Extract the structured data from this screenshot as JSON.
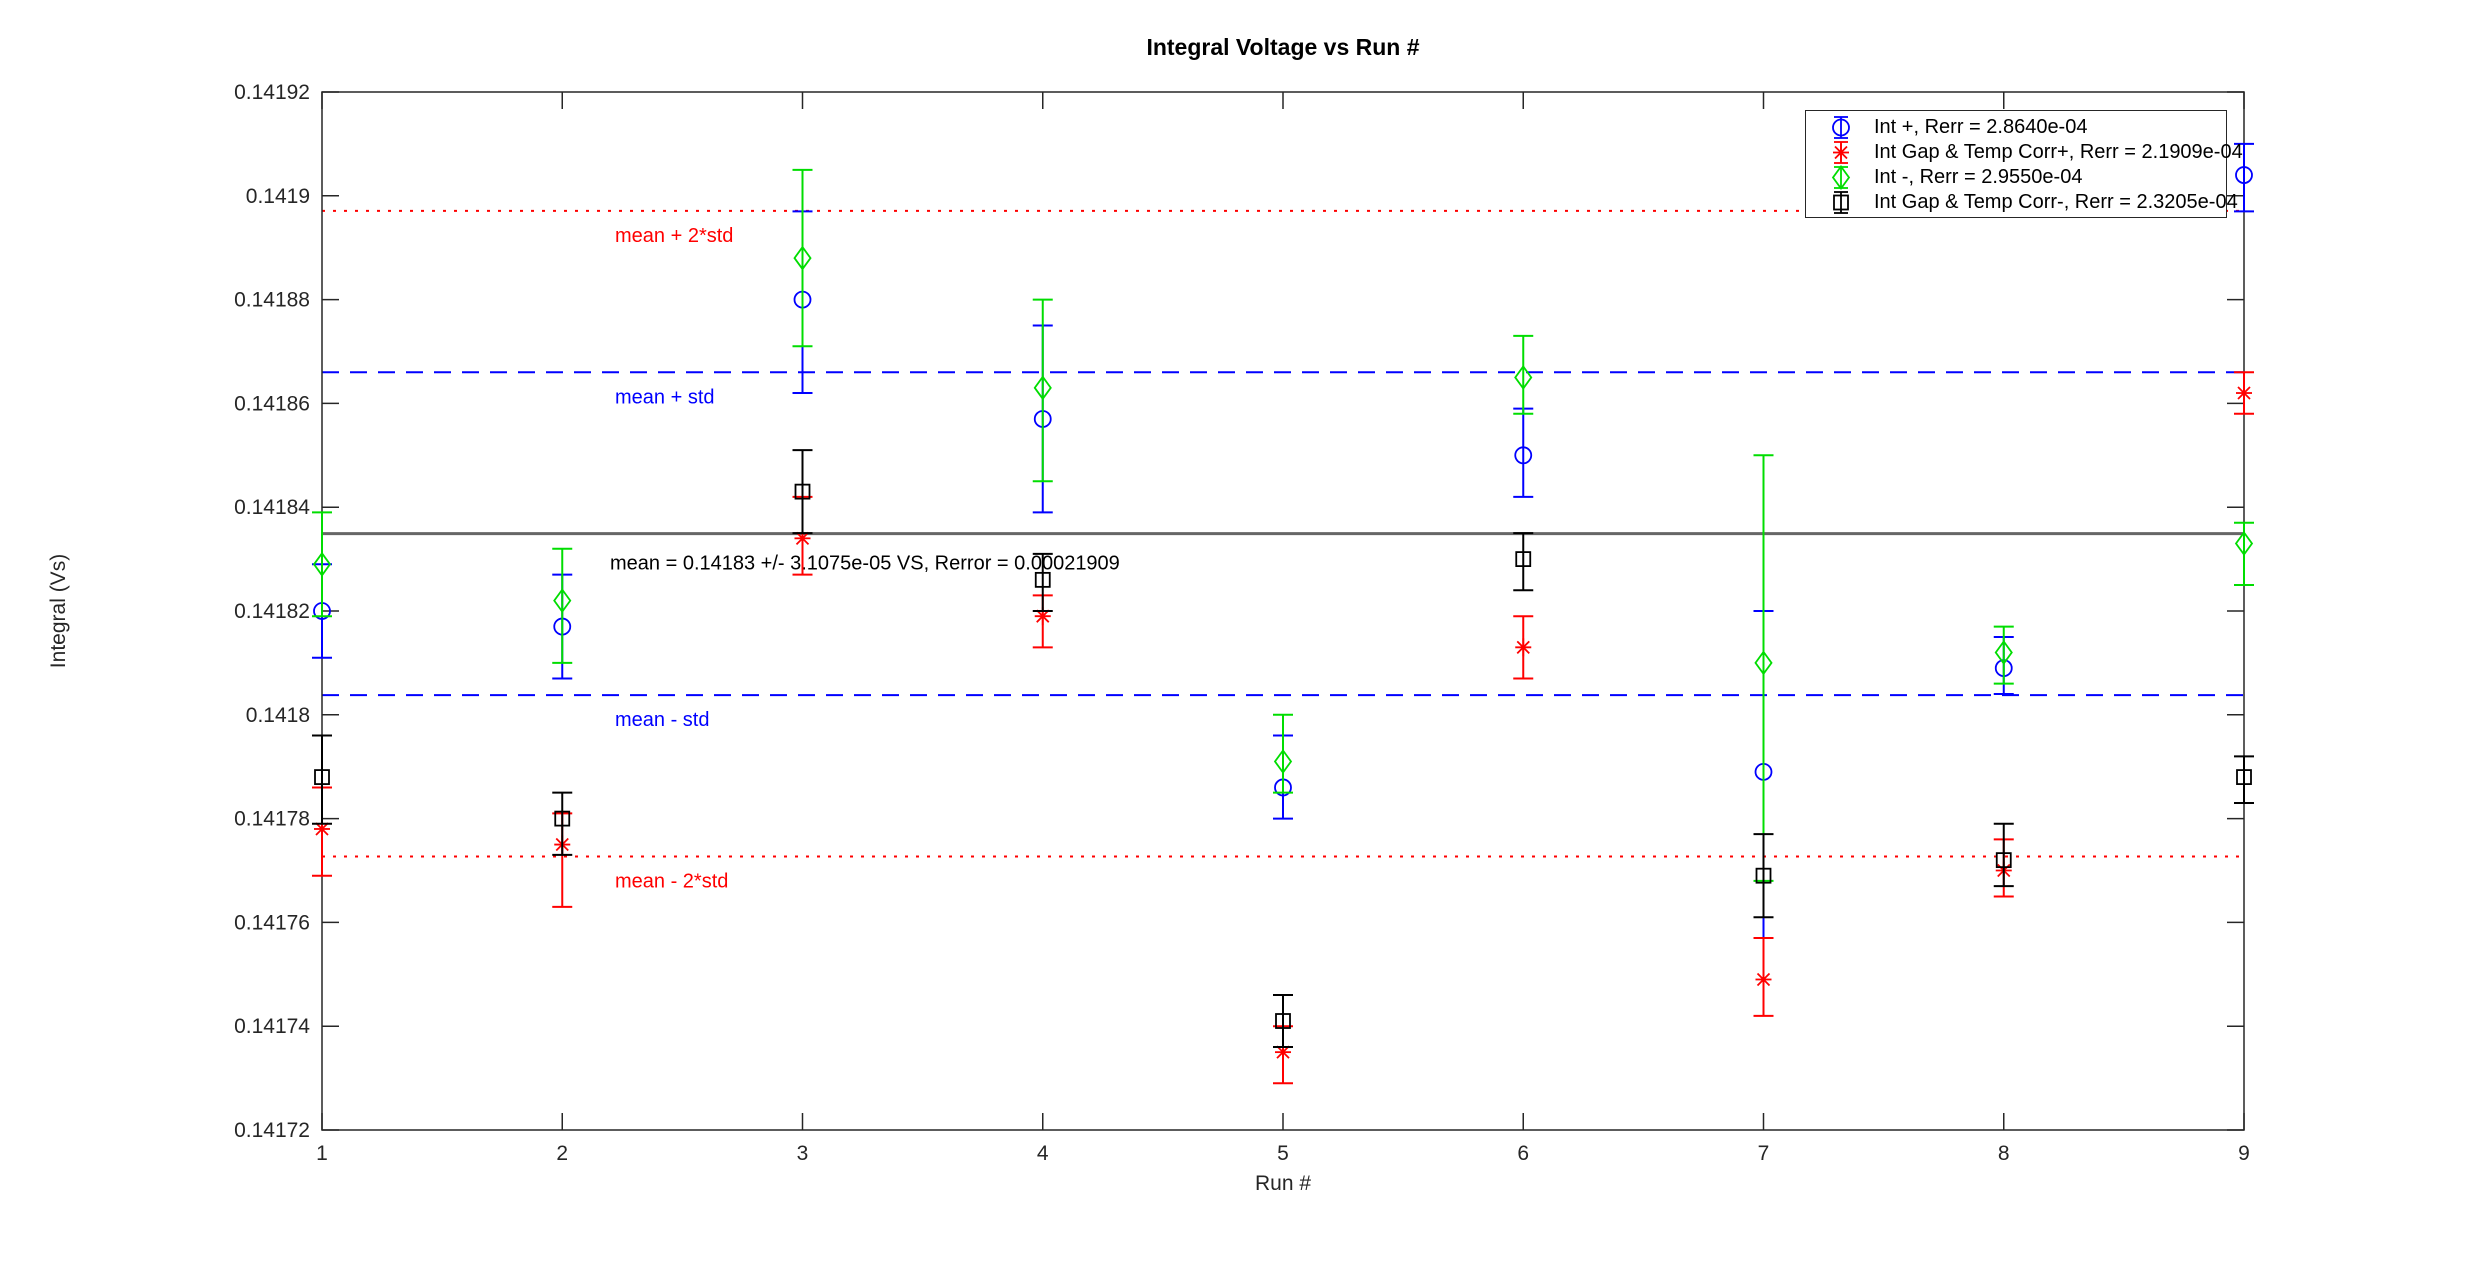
{
  "title": "Integral Voltage vs Run #",
  "axes": {
    "xlabel": "Run #",
    "ylabel": "Integral (Vs)",
    "xlim": [
      1,
      9
    ],
    "ylim": [
      0.14172,
      0.14192
    ],
    "x_ticks": [
      {
        "v": 1,
        "label": "1"
      },
      {
        "v": 2,
        "label": "2"
      },
      {
        "v": 3,
        "label": "3"
      },
      {
        "v": 4,
        "label": "4"
      },
      {
        "v": 5,
        "label": "5"
      },
      {
        "v": 6,
        "label": "6"
      },
      {
        "v": 7,
        "label": "7"
      },
      {
        "v": 8,
        "label": "8"
      },
      {
        "v": 9,
        "label": "9"
      }
    ],
    "y_ticks": [
      {
        "v": 0.14172,
        "label": "0.14172"
      },
      {
        "v": 0.14174,
        "label": "0.14174"
      },
      {
        "v": 0.14176,
        "label": "0.14176"
      },
      {
        "v": 0.14178,
        "label": "0.14178"
      },
      {
        "v": 0.1418,
        "label": "0.1418"
      },
      {
        "v": 0.14182,
        "label": "0.14182"
      },
      {
        "v": 0.14184,
        "label": "0.14184"
      },
      {
        "v": 0.14186,
        "label": "0.14186"
      },
      {
        "v": 0.14188,
        "label": "0.14188"
      },
      {
        "v": 0.1419,
        "label": "0.1419"
      },
      {
        "v": 0.14192,
        "label": "0.14192"
      }
    ]
  },
  "legend": {
    "entries": [
      {
        "label": "Int +, Rerr = 2.8640e-04",
        "marker": "circle",
        "color": "#0000ff"
      },
      {
        "label": "Int Gap & Temp Corr+, Rerr = 2.1909e-04",
        "marker": "asterisk",
        "color": "#ff0000"
      },
      {
        "label": "Int -, Rerr = 2.9550e-04",
        "marker": "diamond",
        "color": "#00dd00"
      },
      {
        "label": "Int Gap & Temp Corr-, Rerr = 2.3205e-04",
        "marker": "square",
        "color": "#000000"
      }
    ]
  },
  "chart_data": {
    "type": "scatter",
    "x": [
      1,
      2,
      3,
      4,
      5,
      6,
      7,
      8,
      9
    ],
    "series": [
      {
        "name": "Int +",
        "marker": "circle",
        "color": "#0000ff",
        "values": [
          0.14182,
          0.141817,
          0.14188,
          0.141857,
          0.141786,
          0.14185,
          0.141789,
          0.141809,
          0.141904
        ],
        "err_hi": [
          0.141829,
          0.141827,
          0.141897,
          0.141875,
          0.141796,
          0.141859,
          0.14182,
          0.141815,
          0.14191
        ],
        "err_lo": [
          0.141811,
          0.141807,
          0.141862,
          0.141839,
          0.14178,
          0.141842,
          0.141757,
          0.141804,
          0.141897
        ]
      },
      {
        "name": "Int Gap & Temp Corr+",
        "marker": "asterisk",
        "color": "#ff0000",
        "values": [
          0.141778,
          0.141775,
          0.141834,
          0.141819,
          0.141735,
          0.141813,
          0.141749,
          0.14177,
          0.141862
        ],
        "err_hi": [
          0.141786,
          0.141781,
          0.141842,
          0.141823,
          0.14174,
          0.141819,
          0.141757,
          0.141776,
          0.141866
        ],
        "err_lo": [
          0.141769,
          0.141763,
          0.141827,
          0.141813,
          0.141729,
          0.141807,
          0.141742,
          0.141765,
          0.141858
        ]
      },
      {
        "name": "Int -",
        "marker": "diamond",
        "color": "#00dd00",
        "values": [
          0.141829,
          0.141822,
          0.141888,
          0.141863,
          0.141791,
          0.141865,
          0.14181,
          0.141812,
          0.141833
        ],
        "err_hi": [
          0.141839,
          0.141832,
          0.141905,
          0.14188,
          0.1418,
          0.141873,
          0.14185,
          0.141817,
          0.141837
        ],
        "err_lo": [
          0.141819,
          0.14181,
          0.141871,
          0.141845,
          0.141785,
          0.141858,
          0.141768,
          0.141806,
          0.141825
        ]
      },
      {
        "name": "Int Gap & Temp Corr-",
        "marker": "square",
        "color": "#000000",
        "values": [
          0.141788,
          0.14178,
          0.141843,
          0.141826,
          0.141741,
          0.14183,
          0.141769,
          0.141772,
          0.141788
        ],
        "err_hi": [
          0.141796,
          0.141785,
          0.141851,
          0.141831,
          0.141746,
          0.141835,
          0.141777,
          0.141779,
          0.141792
        ],
        "err_lo": [
          0.141779,
          0.141773,
          0.141835,
          0.14182,
          0.141736,
          0.141824,
          0.141761,
          0.141767,
          0.141783
        ]
      }
    ],
    "stats": {
      "mean": 0.1418349,
      "std": 3.1075e-05,
      "rerror": 0.00021909
    },
    "reference_lines": [
      {
        "id": "mean_plus_2std",
        "value": 0.1418971,
        "color": "#ff0000",
        "style": "dotted",
        "label": "mean + 2*std"
      },
      {
        "id": "mean_plus_std",
        "value": 0.141866,
        "color": "#0000ff",
        "style": "dashed",
        "label": "mean + std"
      },
      {
        "id": "mean",
        "value": 0.1418349,
        "color": "#666666",
        "style": "solid",
        "label": "mean = 0.14183 +/- 3.1075e-05 VS, Rerror = 0.00021909",
        "label_color": "#000000"
      },
      {
        "id": "mean_minus_std",
        "value": 0.1418038,
        "color": "#0000ff",
        "style": "dashed",
        "label": "mean - std"
      },
      {
        "id": "mean_minus_2std",
        "value": 0.1417727,
        "color": "#ff0000",
        "style": "dotted",
        "label": "mean - 2*std"
      }
    ],
    "legend_position": "top-right",
    "grid": false
  }
}
